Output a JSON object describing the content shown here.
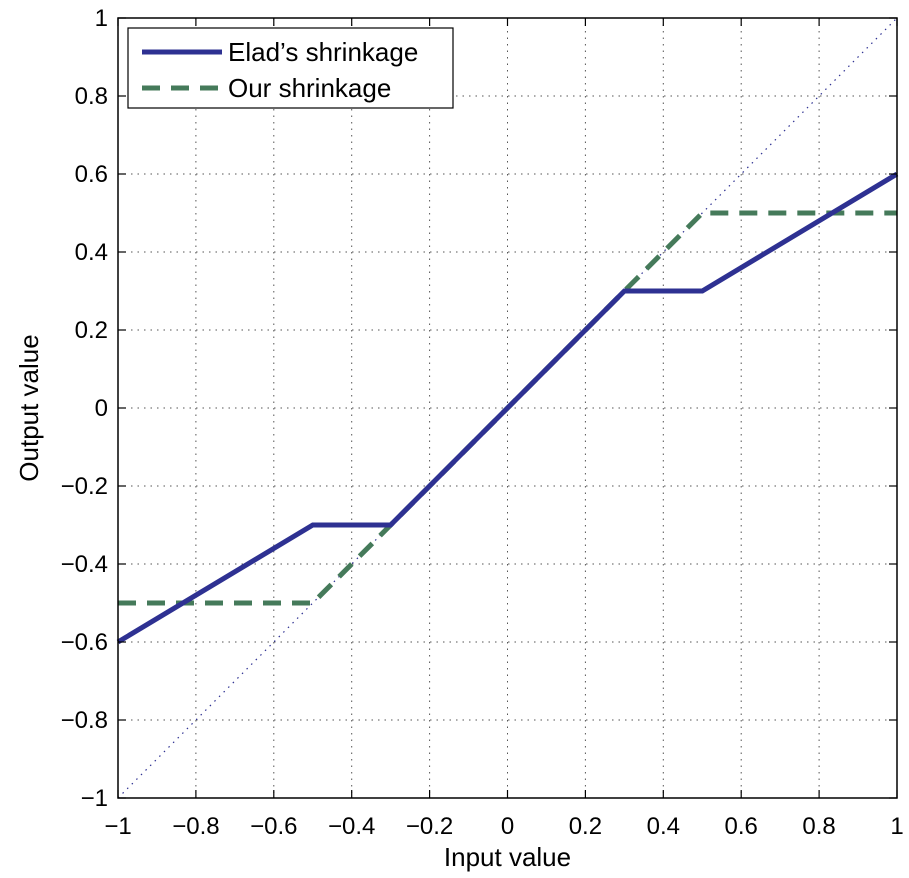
{
  "chart_data": {
    "type": "line",
    "xlabel": "Input value",
    "ylabel": "Output value",
    "xlim": [
      -1,
      1
    ],
    "ylim": [
      -1,
      1
    ],
    "grid": true,
    "legend_position": "top-left",
    "x_ticks": [
      -1,
      -0.8,
      -0.6,
      -0.4,
      -0.2,
      0,
      0.2,
      0.4,
      0.6,
      0.8,
      1
    ],
    "x_tick_labels": [
      "−1",
      "−0.8",
      "−0.6",
      "−0.4",
      "−0.2",
      "0",
      "0.2",
      "0.4",
      "0.6",
      "0.8",
      "1"
    ],
    "y_ticks": [
      -1,
      -0.8,
      -0.6,
      -0.4,
      -0.2,
      0,
      0.2,
      0.4,
      0.6,
      0.8,
      1
    ],
    "y_tick_labels": [
      "−1",
      "−0.8",
      "−0.6",
      "−0.4",
      "−0.2",
      "0",
      "0.2",
      "0.4",
      "0.6",
      "0.8",
      "1"
    ],
    "series": [
      {
        "name": "Elad’s shrinkage",
        "color": "#2e3192",
        "style": "solid",
        "x": [
          -1,
          -0.5,
          -0.3,
          0.3,
          0.5,
          1
        ],
        "y": [
          -0.6,
          -0.3,
          -0.3,
          0.3,
          0.3,
          0.6
        ]
      },
      {
        "name": "Our shrinkage",
        "color": "#457a5a",
        "style": "dashed",
        "x": [
          -1,
          -0.5,
          0.5,
          1
        ],
        "y": [
          -0.5,
          -0.5,
          0.5,
          0.5
        ]
      },
      {
        "color": "#2e3192",
        "style": "dotted",
        "x": [
          -1,
          1
        ],
        "y": [
          -1,
          1
        ]
      }
    ]
  }
}
